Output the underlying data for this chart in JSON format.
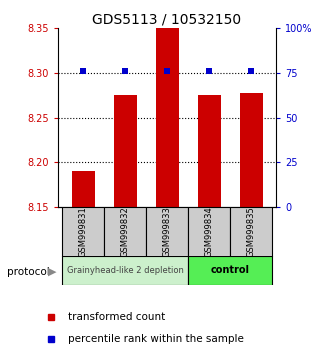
{
  "title": "GDS5113 / 10532150",
  "samples": [
    "GSM999831",
    "GSM999832",
    "GSM999833",
    "GSM999834",
    "GSM999835"
  ],
  "bar_values": [
    8.19,
    8.275,
    8.35,
    8.275,
    8.278
  ],
  "bar_base": 8.15,
  "percentile_values": [
    76,
    76,
    76,
    76,
    76
  ],
  "left_ylim": [
    8.15,
    8.35
  ],
  "left_yticks": [
    8.15,
    8.2,
    8.25,
    8.3,
    8.35
  ],
  "right_ylim": [
    0,
    100
  ],
  "right_yticks": [
    0,
    25,
    50,
    75,
    100
  ],
  "right_yticklabels": [
    "0",
    "25",
    "50",
    "75",
    "100%"
  ],
  "bar_color": "#cc0000",
  "percentile_color": "#0000cc",
  "group1_label": "Grainyhead-like 2 depletion",
  "group2_label": "control",
  "group1_color": "#ccf0cc",
  "group2_color": "#55ee55",
  "protocol_label": "protocol",
  "legend_bar_label": "transformed count",
  "legend_pct_label": "percentile rank within the sample",
  "bar_width": 0.55,
  "sample_box_color": "#cccccc",
  "left_tick_color": "#cc0000",
  "right_tick_color": "#0000cc",
  "title_fontsize": 10,
  "tick_fontsize": 7,
  "sample_fontsize": 6,
  "group_fontsize": 7
}
